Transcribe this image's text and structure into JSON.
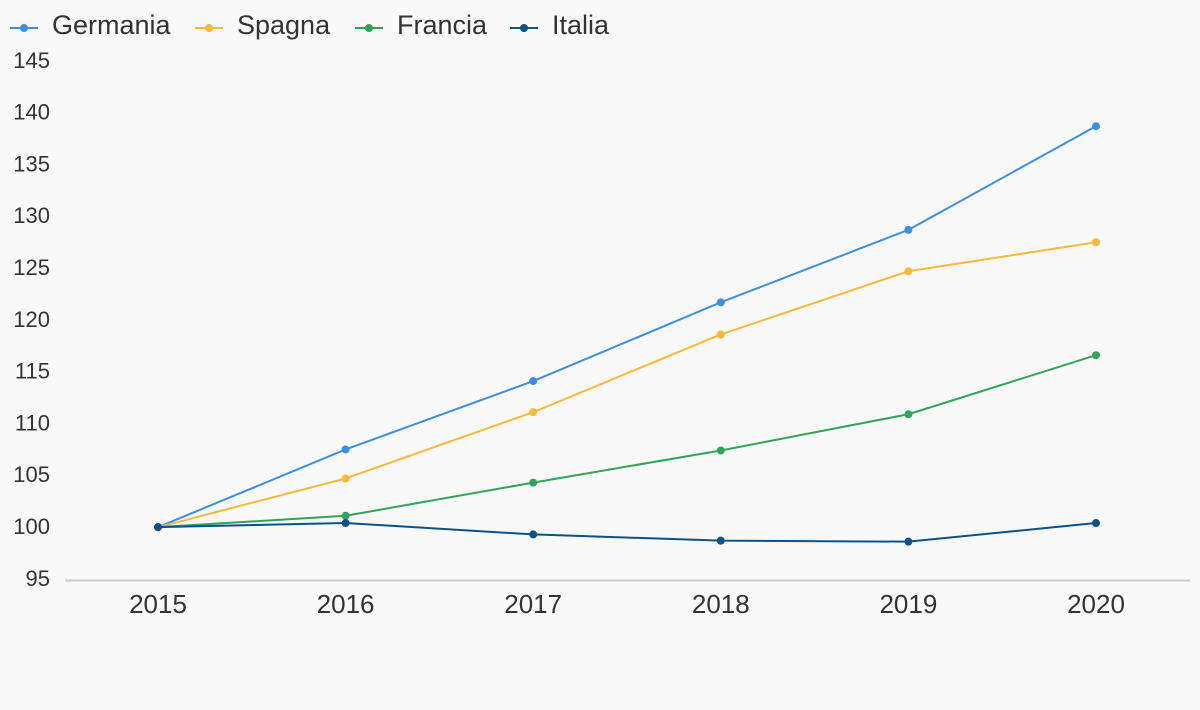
{
  "chart_data": {
    "type": "line",
    "title": "",
    "xlabel": "",
    "ylabel": "",
    "categories": [
      "2015",
      "2016",
      "2017",
      "2018",
      "2019",
      "2020"
    ],
    "ylim": [
      95,
      145
    ],
    "yticks": [
      95,
      100,
      105,
      110,
      115,
      120,
      125,
      130,
      135,
      140,
      145
    ],
    "grid": false,
    "legend_position": "top-left",
    "series": [
      {
        "name": "Germania",
        "color": "#3c8fe0",
        "values": [
          100.1,
          107.6,
          114.2,
          121.8,
          128.8,
          138.8
        ]
      },
      {
        "name": "Spagna",
        "color": "#fbb93a",
        "values": [
          100.1,
          104.8,
          111.2,
          118.7,
          124.8,
          127.6
        ]
      },
      {
        "name": "Francia",
        "color": "#33a35b",
        "values": [
          100.1,
          101.2,
          104.4,
          107.5,
          111.0,
          116.7
        ]
      },
      {
        "name": "Italia",
        "color": "#0a5289",
        "values": [
          100.1,
          100.5,
          99.4,
          98.8,
          98.7,
          100.5
        ]
      }
    ]
  }
}
